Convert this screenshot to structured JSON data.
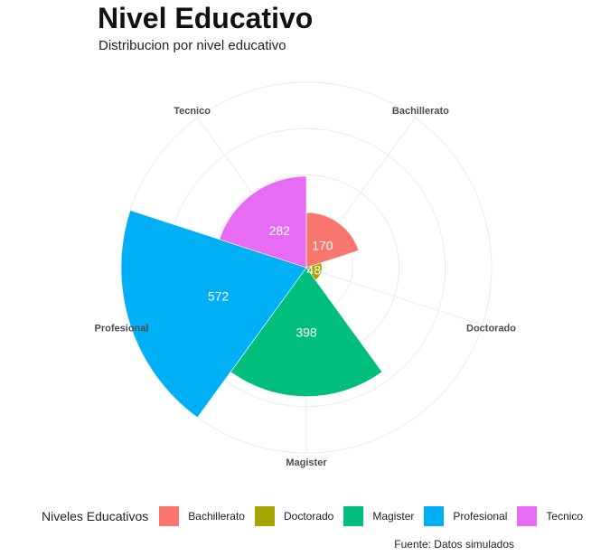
{
  "chart_data": {
    "type": "bar",
    "subtype": "polar-coxcomb",
    "title": "Nivel Educativo",
    "subtitle": "Distribucion por nivel educativo",
    "caption": "Fuente: Datos simulados",
    "legend_title": "Niveles Educativos",
    "legend_position": "bottom",
    "categories": [
      "Bachillerato",
      "Doctorado",
      "Magister",
      "Profesional",
      "Tecnico"
    ],
    "values": [
      170,
      48,
      398,
      572,
      282
    ],
    "colors": [
      "#F8766D",
      "#A3A500",
      "#00BF7D",
      "#00B0F6",
      "#E76BF3"
    ],
    "grid": true
  }
}
